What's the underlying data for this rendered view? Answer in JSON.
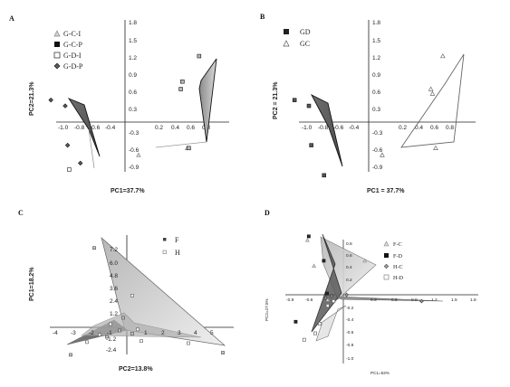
{
  "panels": [
    {
      "letter": "A"
    },
    {
      "letter": "B"
    },
    {
      "letter": "C"
    },
    {
      "letter": "D"
    }
  ],
  "chart_data": [
    {
      "type": "scatter",
      "panel": "A",
      "xlabel": "PC1=37.7%",
      "ylabel": "PC2=21.3%",
      "xlim": [
        -1.0,
        1.0
      ],
      "ylim": [
        -0.9,
        1.8
      ],
      "x_ticks": [
        "-1.0",
        "-0.8",
        "-0.6",
        "-0.4",
        "0.2",
        "0.4",
        "0.6",
        "0.8"
      ],
      "y_ticks": [
        "1.8",
        "1.5",
        "1.2",
        "0.9",
        "0.6",
        "0.3",
        "-0.3",
        "-0.6",
        "-0.9"
      ],
      "legend": [
        "G-C-I",
        "G-C-P",
        "G-D-I",
        "G-D-P"
      ],
      "series": [
        {
          "name": "G-C-I",
          "marker": "triangle",
          "fill": "#d0d0d0",
          "stroke": "#888888",
          "points": [
            [
              0.17,
              -0.57
            ],
            [
              0.78,
              -0.45
            ]
          ]
        },
        {
          "name": "G-C-P",
          "marker": "square",
          "fill": "#b8b8b8",
          "stroke": "#111111",
          "points": [
            [
              0.7,
              0.57
            ],
            [
              0.72,
              0.7
            ],
            [
              0.93,
              1.14
            ],
            [
              0.8,
              -0.45
            ]
          ]
        },
        {
          "name": "G-D-I",
          "marker": "square",
          "fill": "#ffffff",
          "stroke": "#222222",
          "points": [
            [
              -0.7,
              -0.82
            ]
          ]
        },
        {
          "name": "G-D-P",
          "marker": "diamond",
          "fill": "#5a5a5a",
          "stroke": "#111111",
          "points": [
            [
              -0.93,
              0.38
            ],
            [
              -0.75,
              0.28
            ],
            [
              -0.56,
              -0.71
            ],
            [
              -0.72,
              -0.4
            ]
          ]
        }
      ]
    },
    {
      "type": "scatter",
      "panel": "B",
      "xlabel": "PC1 = 37.7%",
      "ylabel": "PC2 = 21.3%",
      "xlim": [
        -1.0,
        1.0
      ],
      "ylim": [
        -0.9,
        1.8
      ],
      "x_ticks": [
        "-1.0",
        "-0.8",
        "-0.6",
        "-0.4",
        "0.2",
        "0.4",
        "0.6",
        "0.8"
      ],
      "y_ticks": [
        "1.8",
        "1.5",
        "1.2",
        "0.9",
        "0.6",
        "0.3",
        "-0.3",
        "-0.6",
        "-0.9"
      ],
      "legend": [
        "GD",
        "GC"
      ],
      "series": [
        {
          "name": "GD",
          "marker": "square",
          "fill": "#555555",
          "stroke": "#111111",
          "points": [
            [
              -0.93,
              0.38
            ],
            [
              -0.75,
              0.28
            ],
            [
              -0.56,
              -0.92
            ],
            [
              -0.72,
              -0.4
            ]
          ]
        },
        {
          "name": "GC",
          "marker": "triangle",
          "fill": "#ffffff",
          "stroke": "#555555",
          "points": [
            [
              0.17,
              -0.57
            ],
            [
              0.78,
              0.57
            ],
            [
              0.8,
              0.49
            ],
            [
              0.93,
              1.14
            ],
            [
              0.84,
              -0.45
            ]
          ]
        }
      ]
    },
    {
      "type": "scatter",
      "panel": "C",
      "xlabel": "PC2=13.8%",
      "ylabel": "PC1=18.2%",
      "xlim": [
        -4,
        6
      ],
      "ylim": [
        -2.5,
        8.5
      ],
      "x_ticks": [
        "-4",
        "-3",
        "-2",
        "-1",
        "1",
        "2",
        "3",
        "4",
        "5"
      ],
      "y_ticks": [
        "7.2",
        "6.0",
        "4.8",
        "3.6",
        "2.4",
        "1.2",
        "-1.2",
        "-2.4"
      ],
      "legend": [
        "F",
        "H"
      ],
      "series": [
        {
          "name": "F",
          "marker": "square",
          "fill": "#c8c8c8",
          "stroke": "#444444",
          "points": [
            [
              -1.8,
              7.5
            ],
            [
              -3.1,
              -2.6
            ],
            [
              -1.1,
              -0.9
            ],
            [
              -0.2,
              0.9
            ],
            [
              0.3,
              -0.6
            ],
            [
              -0.4,
              -0.3
            ],
            [
              5.3,
              -2.4
            ]
          ]
        },
        {
          "name": "H",
          "marker": "square",
          "fill": "#ffffff",
          "stroke": "#555555",
          "points": [
            [
              -2.2,
              -1.4
            ],
            [
              -1.5,
              -0.7
            ],
            [
              -0.9,
              0.3
            ],
            [
              0.3,
              3.0
            ],
            [
              0.6,
              -0.2
            ],
            [
              0.8,
              -1.3
            ],
            [
              3.4,
              -1.5
            ]
          ]
        }
      ]
    },
    {
      "type": "scatter",
      "panel": "D",
      "xlabel": "PC1=53%",
      "ylabel": "PC2=27.5%",
      "xlim": [
        -1.0,
        1.9
      ],
      "ylim": [
        -1.0,
        1.0
      ],
      "x_ticks": [
        "-0.9",
        "-0.6",
        "0.3",
        "0.6",
        "0.9",
        "1.2",
        "1.5",
        "1.8"
      ],
      "y_ticks": [
        "0.8",
        "0.6",
        "0.4",
        "0.2",
        "-0.2",
        "-0.4",
        "-0.6",
        "-0.8",
        "-1.0"
      ],
      "legend": [
        "F-C",
        "F-D",
        "H-C",
        "H-D"
      ],
      "series": [
        {
          "name": "F-C",
          "marker": "triangle",
          "fill": "#d8d8d8",
          "stroke": "#888888",
          "points": [
            [
              -0.55,
              0.85
            ],
            [
              0.33,
              0.53
            ],
            [
              -0.24,
              -0.08
            ],
            [
              -0.45,
              0.45
            ]
          ]
        },
        {
          "name": "F-D",
          "marker": "square",
          "fill": "#2a2a2a",
          "stroke": "#111111",
          "points": [
            [
              -0.53,
              0.91
            ],
            [
              -0.3,
              0.53
            ],
            [
              -0.73,
              -0.42
            ],
            [
              -0.25,
              0.02
            ]
          ]
        },
        {
          "name": "H-C",
          "marker": "diamond",
          "fill": "#9a9a9a",
          "stroke": "#333333",
          "points": [
            [
              -0.27,
              -0.05
            ],
            [
              1.2,
              -0.1
            ],
            [
              -0.18,
              -0.02
            ],
            [
              0.05,
              0.0
            ]
          ]
        },
        {
          "name": "H-D",
          "marker": "square",
          "fill": "#ffffff",
          "stroke": "#555555",
          "points": [
            [
              -0.6,
              -0.7
            ],
            [
              -0.43,
              -0.6
            ],
            [
              -0.24,
              -0.17
            ],
            [
              -0.15,
              -0.1
            ],
            [
              -0.36,
              -0.45
            ]
          ]
        }
      ]
    }
  ]
}
